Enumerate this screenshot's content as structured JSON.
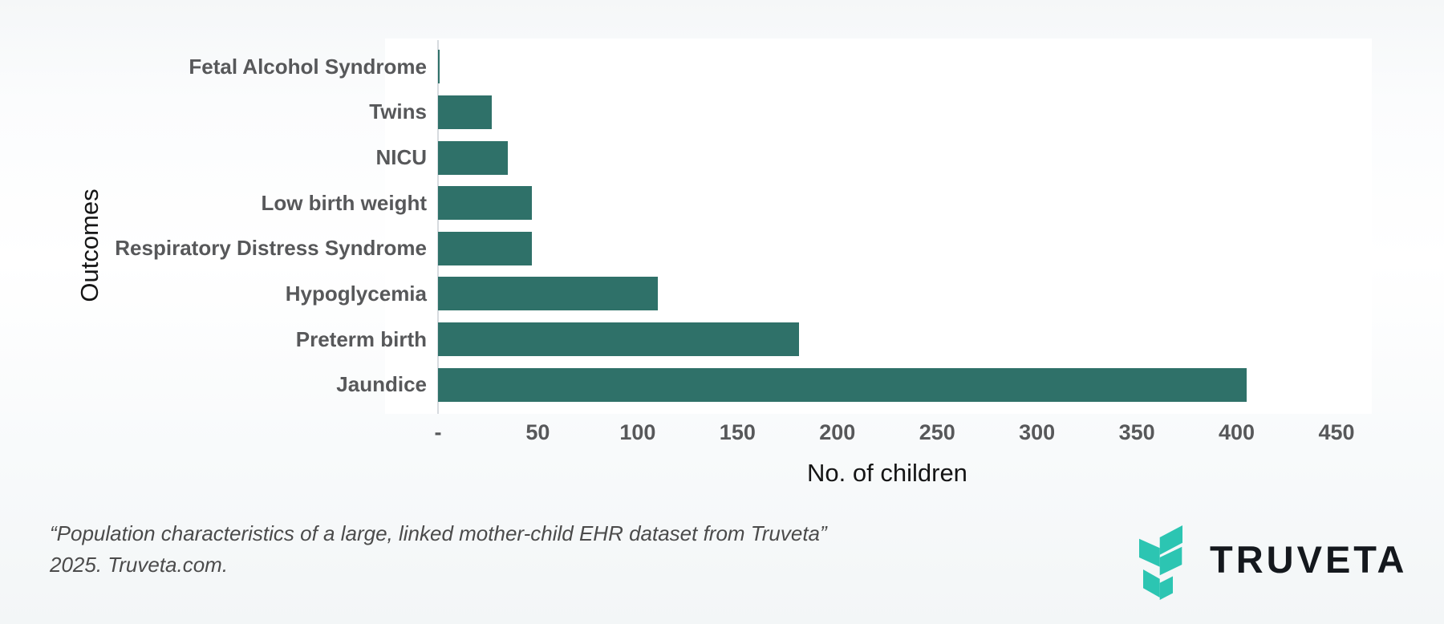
{
  "chart_data": {
    "type": "bar",
    "orientation": "horizontal",
    "categories": [
      "Fetal Alcohol Syndrome",
      "Twins",
      "NICU",
      "Low birth weight",
      "Respiratory Distress Syndrome",
      "Hypoglycemia",
      "Preterm birth",
      "Jaundice"
    ],
    "values": [
      1,
      27,
      35,
      47,
      47,
      110,
      181,
      405
    ],
    "title": "",
    "xlabel": "No. of children",
    "ylabel": "Outcomes",
    "xlim": [
      0,
      450
    ],
    "xticks": [
      "-",
      "50",
      "100",
      "150",
      "200",
      "250",
      "300",
      "350",
      "400",
      "450"
    ],
    "grid": "off",
    "legend": "none",
    "bar_color": "#2F7169"
  },
  "caption": {
    "line1": "“Population characteristics of a large, linked mother-child EHR dataset from Truveta”",
    "line2": "2025. Truveta.com."
  },
  "branding": {
    "wordmark": "TRUVETA",
    "logo_color": "#2CC5B2",
    "wordmark_color": "#14181d"
  }
}
